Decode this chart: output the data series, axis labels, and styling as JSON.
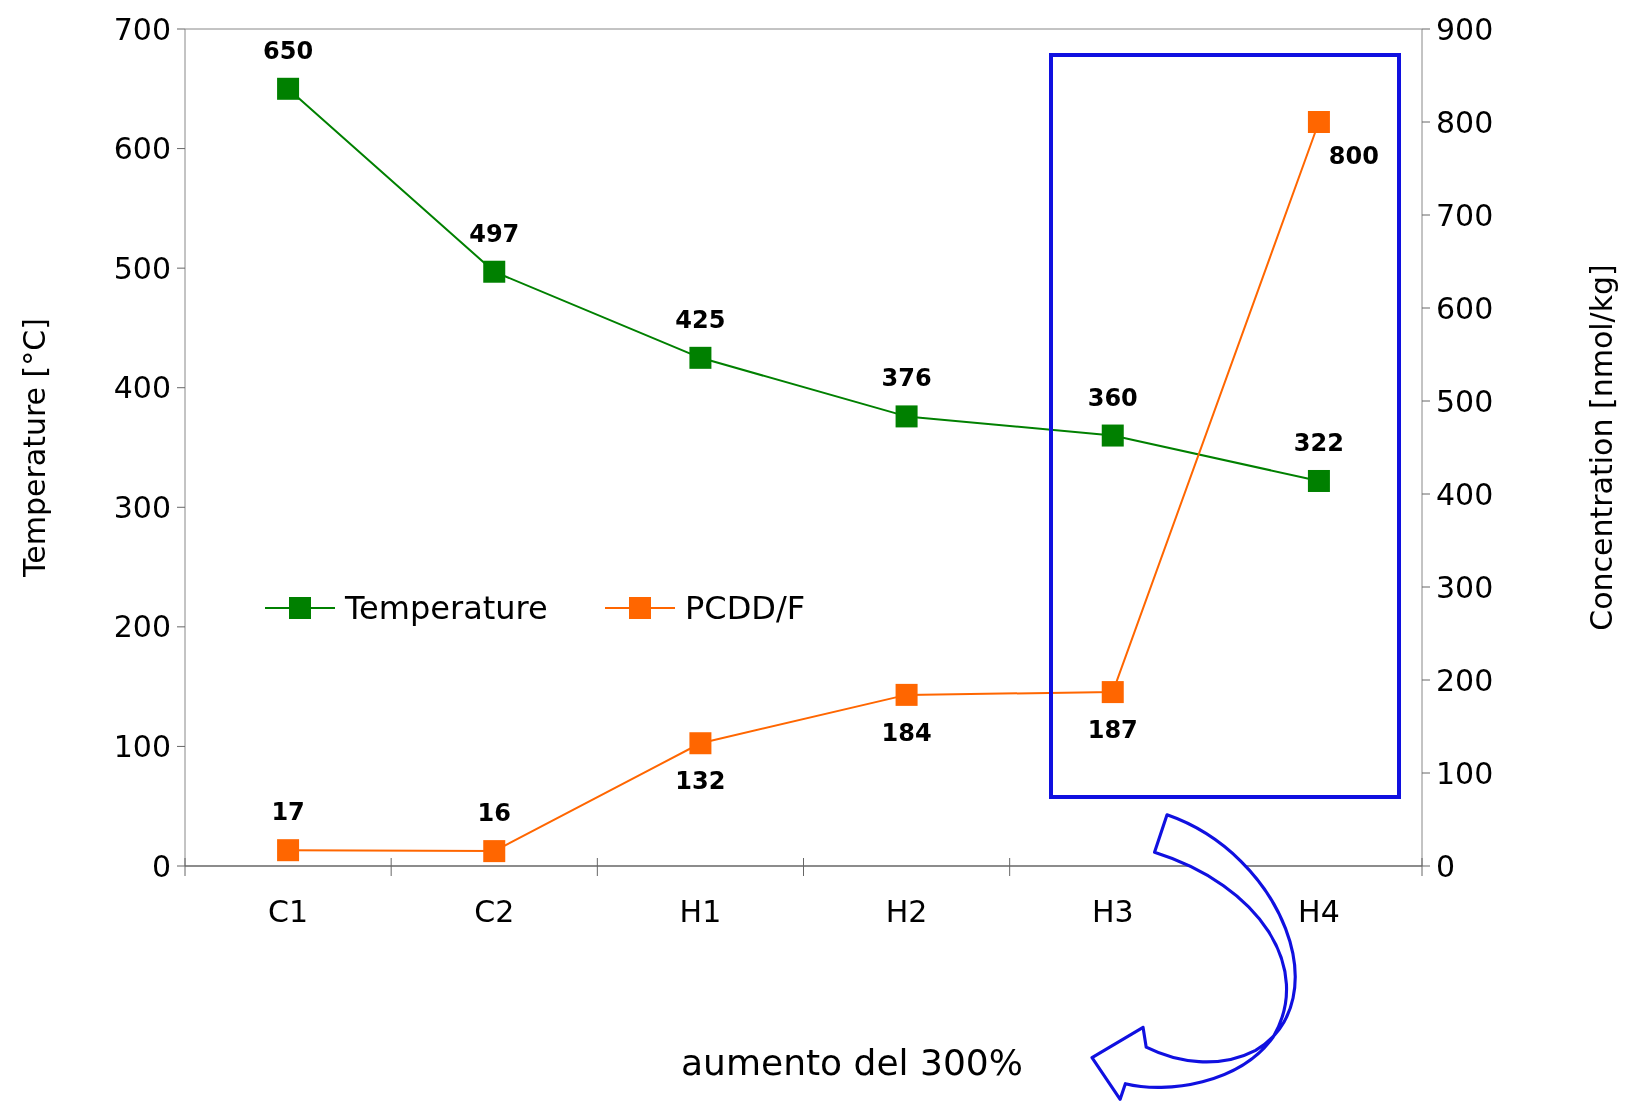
{
  "chart_data": {
    "type": "line",
    "ylabel": "Temperature [°C]",
    "y2label": "Concentration [nmol/kg]",
    "categories": [
      "C1",
      "C2",
      "H1",
      "H2",
      "H3",
      "H4"
    ],
    "series": [
      {
        "name": "Temperature",
        "color": "#008000",
        "values": [
          650,
          497,
          425,
          376,
          360,
          322
        ]
      },
      {
        "name": "PCDD/F",
        "color": "#ff6600",
        "values": [
          17,
          16,
          132,
          184,
          187,
          800
        ],
        "axis": "y2"
      }
    ],
    "ylim": [
      0,
      700
    ],
    "yticks": [
      0,
      100,
      200,
      300,
      400,
      500,
      600,
      700
    ],
    "y2lim": [
      0,
      900
    ],
    "y2ticks": [
      0,
      100,
      200,
      300,
      400,
      500,
      600,
      700,
      800,
      900
    ],
    "data_labels": true,
    "marker": "square",
    "line_style": "solid",
    "legend": "left",
    "grid": false,
    "annotations": [
      "aumento del 300%"
    ]
  }
}
